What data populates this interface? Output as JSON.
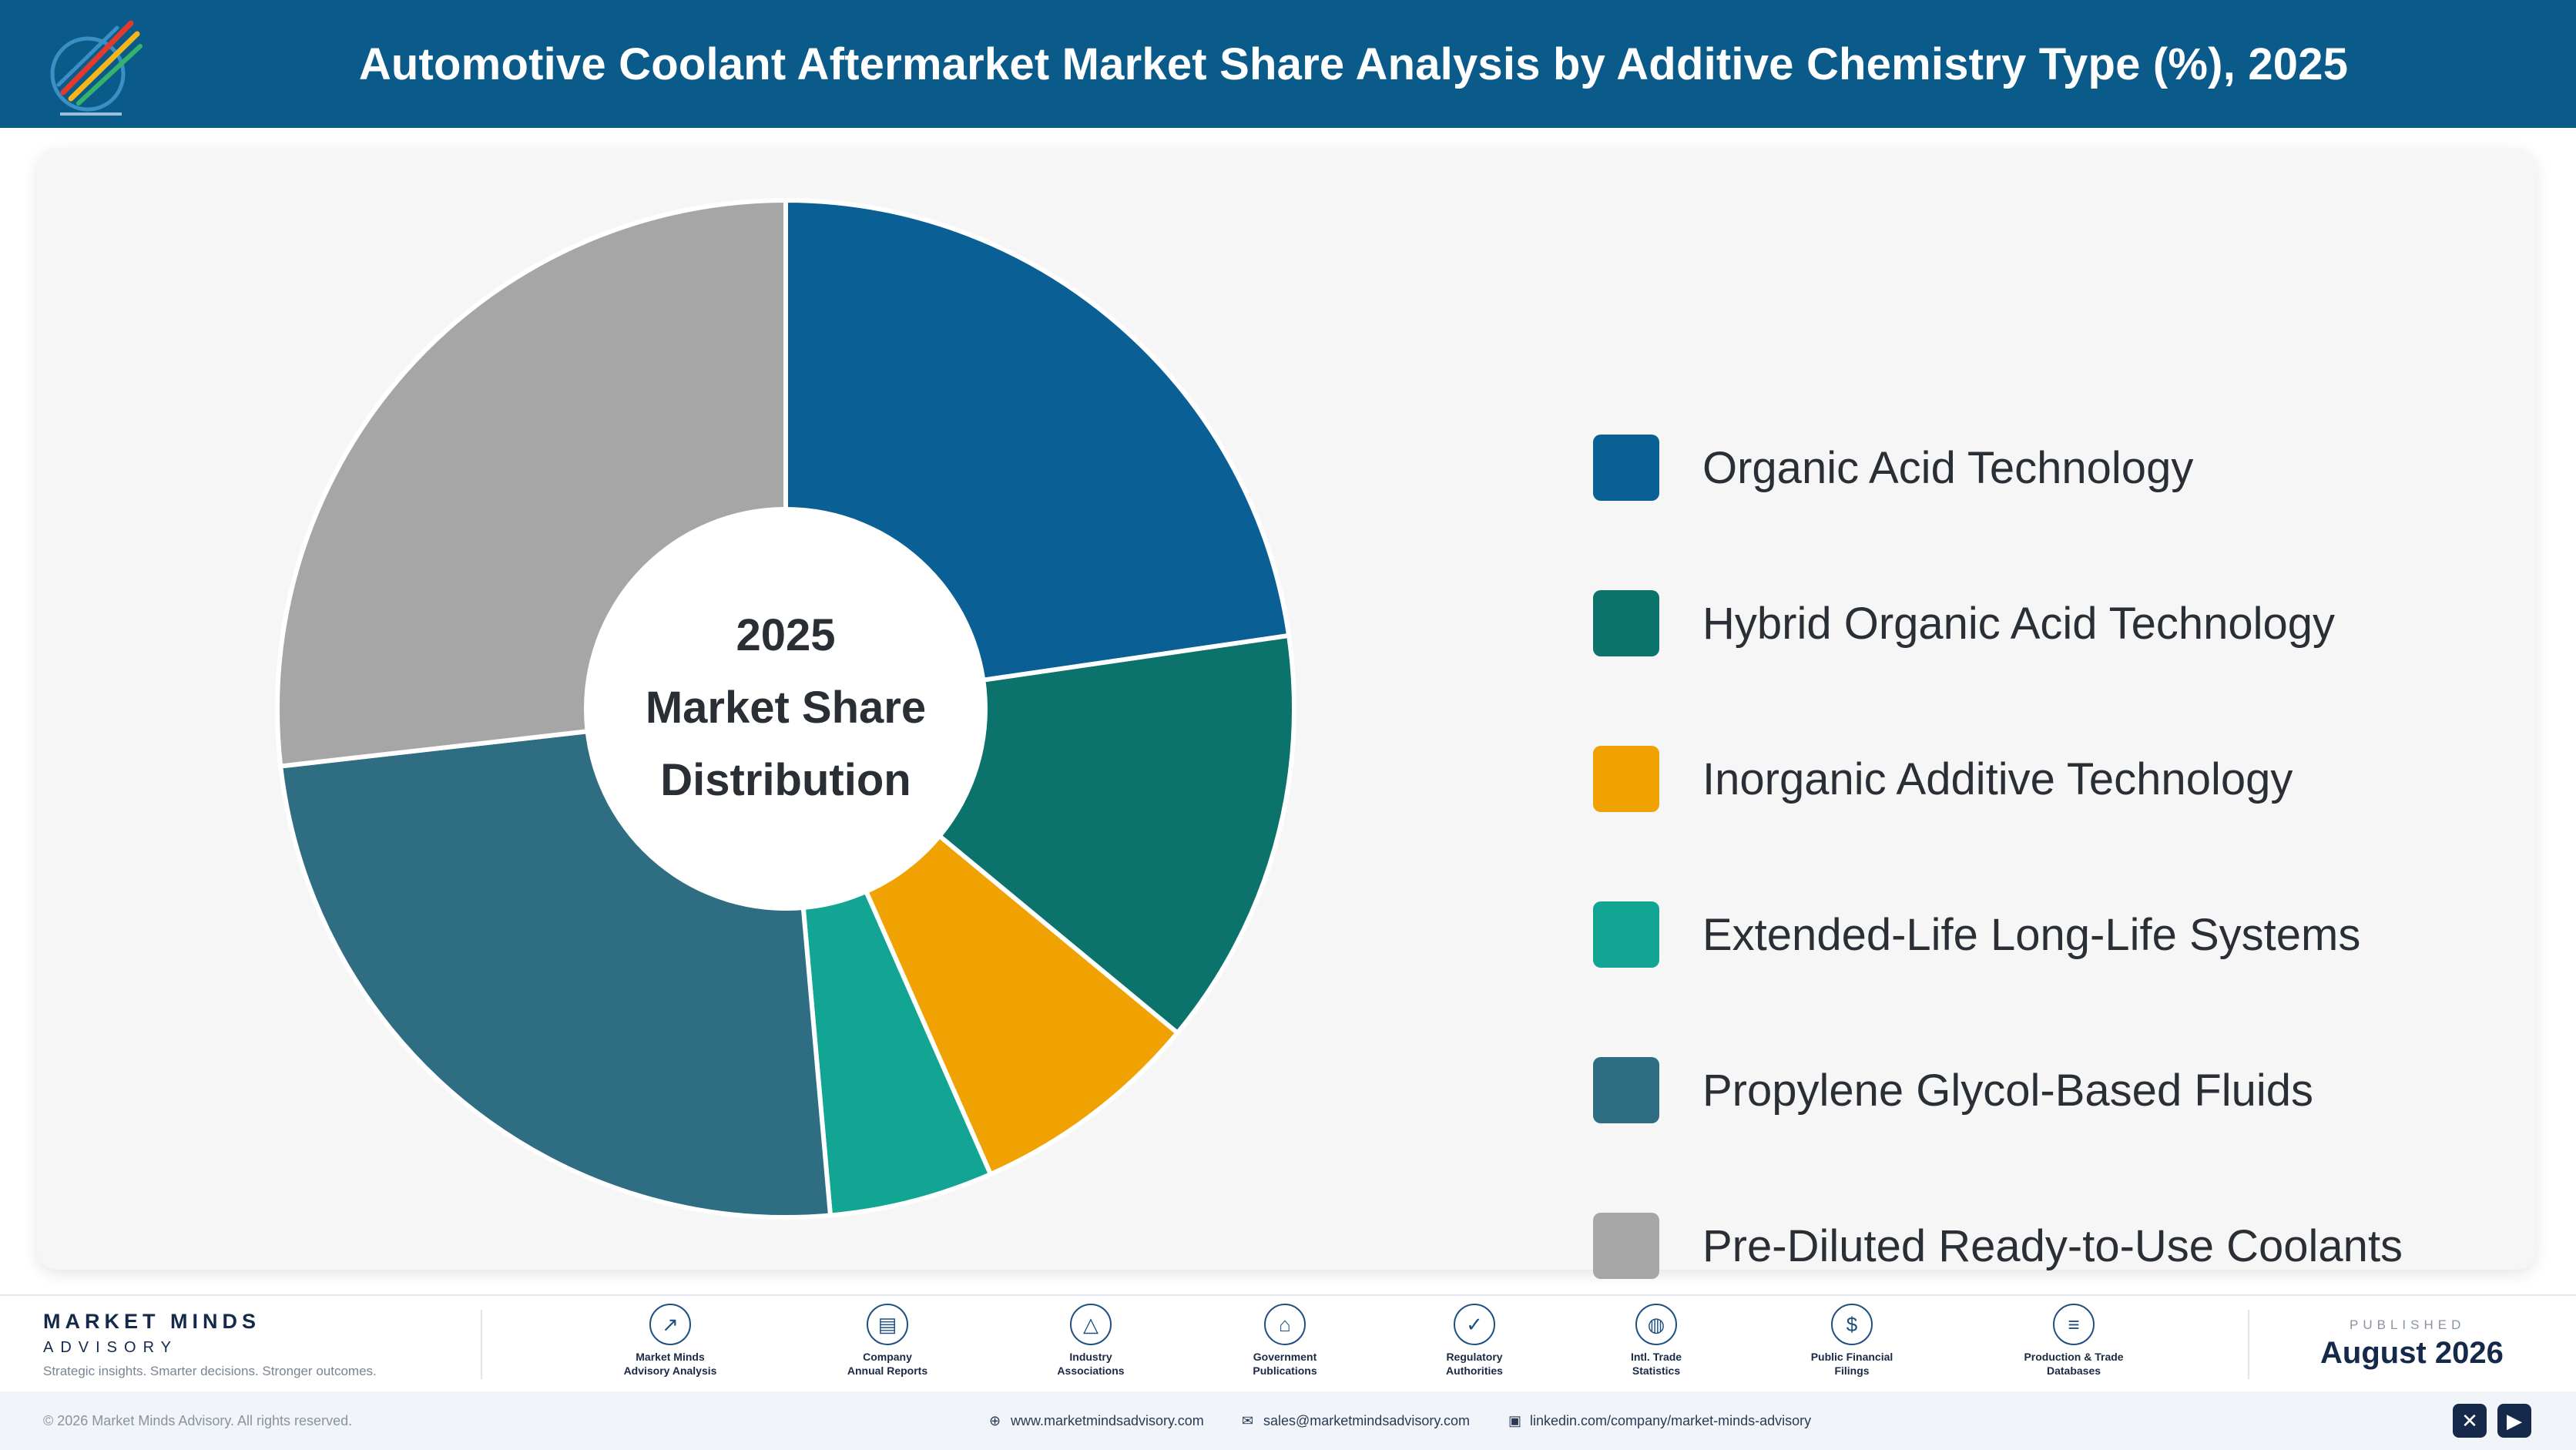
{
  "header": {
    "title": "Automotive Coolant Aftermarket Market Share Analysis by Additive Chemistry Type (%), 2025",
    "logo_icon": "rocket-logo-icon"
  },
  "chart_data": {
    "type": "pie",
    "title": "Automotive Coolant Aftermarket Market Share Analysis by Additive Chemistry Type (%), 2025",
    "center_label": [
      "2025",
      "Market Share",
      "Distribution"
    ],
    "categories": [
      "Organic Acid Technology",
      "Hybrid Organic Acid Technology",
      "Inorganic Additive Technology",
      "Extended-Life Long-Life Systems",
      "Propylene Glycol-Based Fluids",
      "Pre-Diluted Ready-to-Use Coolants"
    ],
    "values": [
      22.7,
      13.3,
      7.4,
      5.2,
      24.6,
      26.8
    ],
    "colors": [
      "#0a5f94",
      "#0b726c",
      "#f0a203",
      "#12a594",
      "#2f6d82",
      "#a6a6a6"
    ],
    "legend_position": "right",
    "donut": true
  },
  "footer": {
    "brand_name": "MARKET MINDS",
    "brand_sub": "ADVISORY",
    "tagline": "Strategic insights. Smarter decisions. Stronger outcomes.",
    "sources": [
      {
        "label": "Market Minds\nAdvisory Analysis",
        "icon": "trend-line-icon",
        "glyph": "↗"
      },
      {
        "label": "Company\nAnnual Reports",
        "icon": "document-icon",
        "glyph": "▤"
      },
      {
        "label": "Industry\nAssociations",
        "icon": "network-icon",
        "glyph": "△"
      },
      {
        "label": "Government\nPublications",
        "icon": "government-building-icon",
        "glyph": "⌂"
      },
      {
        "label": "Regulatory\nAuthorities",
        "icon": "shield-icon",
        "glyph": "✓"
      },
      {
        "label": "Intl. Trade\nStatistics",
        "icon": "globe-icon",
        "glyph": "◍"
      },
      {
        "label": "Public Financial\nFilings",
        "icon": "dollar-coin-icon",
        "glyph": "$"
      },
      {
        "label": "Production & Trade\nDatabases",
        "icon": "database-icon",
        "glyph": "≡"
      }
    ],
    "published_label": "PUBLISHED",
    "published_date": "August 2026"
  },
  "bottom_bar": {
    "copyright": "© 2026 Market Minds Advisory. All rights reserved.",
    "website": "www.marketmindsadvisory.com",
    "email": "sales@marketmindsadvisory.com",
    "linkedin": "linkedin.com/company/market-minds-advisory",
    "social_icons": [
      "x-icon",
      "youtube-icon"
    ]
  }
}
